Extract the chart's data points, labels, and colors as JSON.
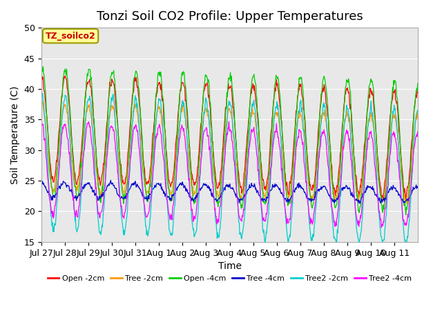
{
  "title": "Tonzi Soil CO2 Profile: Upper Temperatures",
  "xlabel": "Time",
  "ylabel": "Soil Temperature (C)",
  "ylim": [
    15,
    50
  ],
  "annotation_text": "TZ_soilco2",
  "series": [
    {
      "label": "Open -2cm",
      "color": "#ff0000"
    },
    {
      "label": "Tree -2cm",
      "color": "#ff9900"
    },
    {
      "label": "Open -4cm",
      "color": "#00cc00"
    },
    {
      "label": "Tree -4cm",
      "color": "#0000cc"
    },
    {
      "label": "Tree2 -2cm",
      "color": "#00cccc"
    },
    {
      "label": "Tree2 -4cm",
      "color": "#ff00ff"
    }
  ],
  "xtick_labels": [
    "Jul 27",
    "Jul 28",
    "Jul 29",
    "Jul 30",
    "Jul 31",
    "Aug 1",
    "Aug 2",
    "Aug 3",
    "Aug 4",
    "Aug 5",
    "Aug 6",
    "Aug 7",
    "Aug 8",
    "Aug 9",
    "Aug 10",
    "Aug 11"
  ],
  "ytick_labels": [
    15,
    20,
    25,
    30,
    35,
    40,
    45,
    50
  ],
  "bg_color": "#ffffff",
  "plot_bg_color": "#e8e8e8",
  "grid_color": "#ffffff",
  "annotation_bg": "#ffff99",
  "annotation_fg": "#cc0000",
  "title_fontsize": 13,
  "axis_fontsize": 10,
  "tick_fontsize": 9,
  "num_days": 16,
  "pts_per_day": 48
}
